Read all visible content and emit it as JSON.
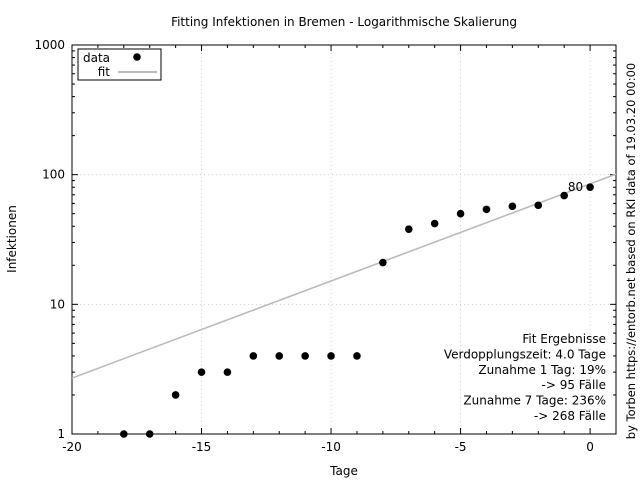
{
  "chart_data": {
    "type": "scatter",
    "title": "Fitting Infektionen in Bremen - Logarithmische Skalierung",
    "xlabel": "Tage",
    "ylabel": "Infektionen",
    "y_scale": "log",
    "xlim": [
      -20,
      1
    ],
    "ylim": [
      1,
      1000
    ],
    "x_ticks": [
      -20,
      -15,
      -10,
      -5,
      0
    ],
    "x_tick_labels": [
      "-20",
      "-15",
      "-10",
      "-5",
      "0"
    ],
    "y_ticks": [
      1,
      10,
      100,
      1000
    ],
    "y_tick_labels": [
      "1",
      "10",
      "100",
      "1000"
    ],
    "grid": true,
    "legend_position": "top-left",
    "series": [
      {
        "name": "data",
        "kind": "points",
        "color": "#000000",
        "x": [
          -18,
          -17,
          -16,
          -15,
          -14,
          -13,
          -12,
          -11,
          -10,
          -9,
          -8,
          -7,
          -6,
          -5,
          -4,
          -3,
          -2,
          -1,
          0
        ],
        "y": [
          1,
          1,
          2,
          3,
          3,
          4,
          4,
          4,
          4,
          4,
          21,
          38,
          42,
          50,
          54,
          57,
          58,
          69,
          80
        ]
      },
      {
        "name": "fit",
        "kind": "line",
        "color": "#bbbbbb",
        "x": [
          -20,
          1
        ],
        "y": [
          2.7,
          100.9
        ]
      }
    ],
    "point_label": {
      "x": 0,
      "y": 80,
      "text": "80"
    },
    "annotations": [
      "Fit Ergebnisse",
      "Verdopplungszeit: 4.0 Tage",
      "Zunahme 1 Tag: 19%",
      "-> 95 Fälle",
      "Zunahme 7 Tage: 236%",
      "-> 268 Fälle"
    ],
    "side_note": "by Torben https://entorb.net based on RKI data of 19.03.20 00:00"
  }
}
